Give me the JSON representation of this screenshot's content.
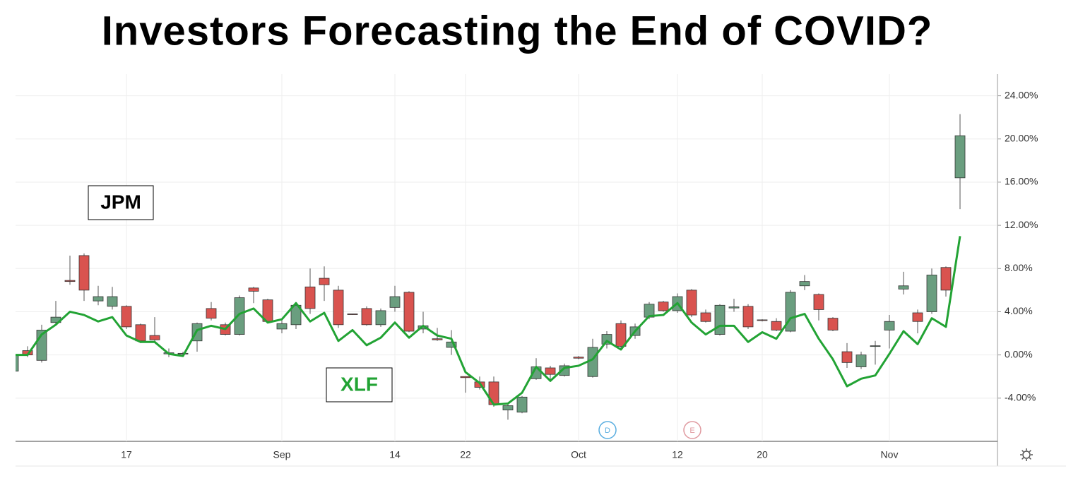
{
  "chart_data": {
    "type": "candlestick",
    "title": "Investors Forecasting the End of COVID?",
    "categories": [
      null,
      null,
      null,
      null,
      null,
      null,
      null,
      null,
      "17",
      null,
      null,
      null,
      null,
      null,
      null,
      null,
      null,
      null,
      null,
      "Sep",
      null,
      null,
      null,
      null,
      null,
      null,
      null,
      "14",
      null,
      null,
      null,
      null,
      "22",
      null,
      null,
      null,
      null,
      null,
      null,
      null,
      "Oct",
      null,
      null,
      null,
      null,
      null,
      null,
      "12",
      null,
      null,
      null,
      null,
      null,
      "20",
      null,
      null,
      null,
      null,
      null,
      null,
      null,
      null,
      "Nov",
      null,
      null,
      null,
      null,
      null
    ],
    "ylim": [
      -8,
      26
    ],
    "yticks": [
      {
        "value": -4,
        "label": "-4.00%"
      },
      {
        "value": 0,
        "label": "0.00%"
      },
      {
        "value": 4,
        "label": "4.00%"
      },
      {
        "value": 8,
        "label": "8.00%"
      },
      {
        "value": 12,
        "label": "12.00%"
      },
      {
        "value": 16,
        "label": "16.00%"
      },
      {
        "value": 20,
        "label": "20.00%"
      },
      {
        "value": 24,
        "label": "24.00%"
      }
    ],
    "grid": true,
    "series": [
      {
        "name": "JPM",
        "up_color": "#6a9e7f",
        "down_color": "#d9534f",
        "open": [
          -1.5,
          0.4,
          -0.5,
          3.0,
          6.9,
          9.2,
          5.0,
          4.5,
          4.5,
          2.8,
          1.8,
          0.1,
          0.1,
          1.3,
          4.3,
          2.8,
          1.9,
          6.2,
          5.1,
          2.4,
          2.8,
          6.3,
          7.1,
          6.0,
          3.8,
          4.3,
          2.8,
          4.4,
          5.8,
          2.4,
          1.5,
          0.7,
          -2.0,
          -2.5,
          -2.5,
          -5.1,
          -5.3,
          -2.2,
          -1.2,
          -1.9,
          -0.2,
          -2.0,
          1.0,
          2.9,
          1.8,
          3.5,
          4.9,
          4.1,
          6.0,
          3.9,
          1.9,
          4.35,
          4.5,
          3.25,
          3.1,
          2.2,
          6.4,
          5.6,
          3.4,
          0.3,
          -1.1,
          0.8,
          2.3,
          6.1,
          3.9,
          4.0,
          8.1,
          16.4
        ],
        "high": [
          0.0,
          0.8,
          2.8,
          5.0,
          9.2,
          9.4,
          6.4,
          6.3,
          4.6,
          2.9,
          3.5,
          0.6,
          0.3,
          3.0,
          4.9,
          3.0,
          5.5,
          6.3,
          5.2,
          3.4,
          4.9,
          8.0,
          8.2,
          6.4,
          3.8,
          4.5,
          4.3,
          6.4,
          5.9,
          4.0,
          2.5,
          2.3,
          -2.0,
          -2.0,
          -2.0,
          -4.4,
          -3.8,
          -0.3,
          -1.0,
          -0.8,
          -0.1,
          1.5,
          2.2,
          3.2,
          2.9,
          4.9,
          5.0,
          5.7,
          6.1,
          4.2,
          4.7,
          5.2,
          4.7,
          3.3,
          3.4,
          6.0,
          7.4,
          5.7,
          3.5,
          1.1,
          0.3,
          1.3,
          3.7,
          7.7,
          4.2,
          8.0,
          8.2,
          22.3
        ],
        "low": [
          -1.5,
          -0.2,
          -0.7,
          2.8,
          6.5,
          5.0,
          4.6,
          4.2,
          2.4,
          1.1,
          1.1,
          -0.2,
          -0.1,
          0.3,
          3.2,
          1.8,
          1.8,
          4.8,
          3.0,
          2.0,
          2.4,
          3.8,
          5.0,
          2.5,
          3.7,
          2.7,
          2.6,
          4.0,
          2.1,
          2.0,
          1.3,
          0.0,
          -3.5,
          -3.2,
          -4.8,
          -6.0,
          -5.4,
          -2.3,
          -2.5,
          -2.0,
          -0.4,
          -2.1,
          0.6,
          0.6,
          1.5,
          3.3,
          4.0,
          3.9,
          3.5,
          3.0,
          1.8,
          4.0,
          2.4,
          3.1,
          2.2,
          2.1,
          6.0,
          3.2,
          2.2,
          -1.2,
          -1.3,
          -0.9,
          0.6,
          5.6,
          2.0,
          3.8,
          5.4,
          13.5
        ],
        "close": [
          0.0,
          0.0,
          2.3,
          3.5,
          6.8,
          6.0,
          5.4,
          5.4,
          2.6,
          1.3,
          1.4,
          0.2,
          0.15,
          2.9,
          3.4,
          1.9,
          5.3,
          5.9,
          3.1,
          2.9,
          4.6,
          4.3,
          6.5,
          2.8,
          3.75,
          2.8,
          4.1,
          5.4,
          2.2,
          2.7,
          1.4,
          1.2,
          -2.1,
          -3.0,
          -4.6,
          -4.7,
          -3.9,
          -1.1,
          -1.8,
          -1.0,
          -0.3,
          0.7,
          1.9,
          0.8,
          2.6,
          4.7,
          4.1,
          5.4,
          3.7,
          3.1,
          4.6,
          4.45,
          2.6,
          3.2,
          2.3,
          5.8,
          6.8,
          4.2,
          2.3,
          -0.7,
          0.0,
          0.85,
          3.1,
          6.4,
          3.1,
          7.4,
          6.0,
          20.3
        ]
      },
      {
        "name": "XLF",
        "type": "line",
        "color": "#22a334",
        "values": [
          0.0,
          0.0,
          1.9,
          2.8,
          4.0,
          3.7,
          3.1,
          3.5,
          1.8,
          1.2,
          1.2,
          0.1,
          -0.1,
          2.3,
          2.7,
          2.4,
          3.8,
          4.3,
          3.0,
          3.3,
          4.8,
          3.1,
          3.9,
          1.3,
          2.3,
          0.9,
          1.6,
          3.0,
          1.6,
          2.7,
          1.8,
          1.5,
          -1.6,
          -2.6,
          -4.6,
          -4.5,
          -3.5,
          -1.1,
          -2.4,
          -1.2,
          -1.0,
          -0.4,
          1.3,
          0.5,
          2.2,
          3.6,
          3.7,
          4.8,
          3.0,
          1.9,
          2.7,
          2.7,
          1.2,
          2.1,
          1.5,
          3.4,
          3.8,
          1.5,
          -0.4,
          -2.9,
          -2.2,
          -1.9,
          0.1,
          2.2,
          1.0,
          3.4,
          2.6,
          11.0
        ]
      }
    ],
    "annotations": [
      "D",
      "E"
    ]
  }
}
